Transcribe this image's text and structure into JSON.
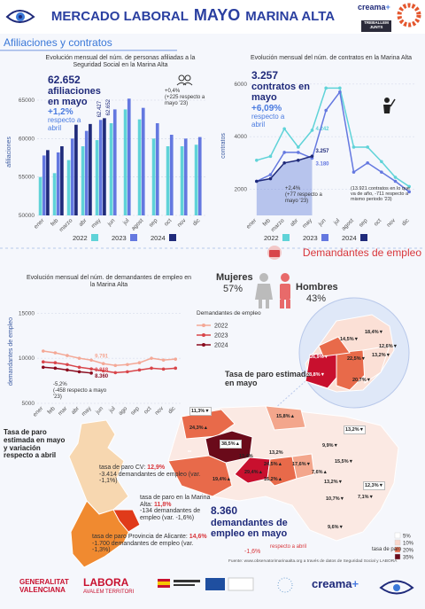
{
  "header": {
    "title_1": "MERCADO LABORAL",
    "title_month": "MAYO",
    "title_2": "MARINA ALTA",
    "brand": "creama",
    "brand_plus": "+",
    "badge": "TREBALLEM JUNTS"
  },
  "sections": [
    "Afiliaciones y contratos",
    "Demandantes de empleo"
  ],
  "chart_data": [
    {
      "type": "bar",
      "title": "Evolución mensual del núm. de personas afiliadas a la Seguridad Social en la Marina Alta",
      "y_label": "afiliaciones",
      "categories": [
        "ener",
        "feb",
        "marzo",
        "abr",
        "may",
        "jun",
        "jul",
        "agost",
        "sep",
        "oct",
        "nov",
        "dic"
      ],
      "series": [
        {
          "name": "2022",
          "color": "#5fd3d8",
          "values": [
            55000,
            55500,
            57200,
            59000,
            59800,
            62000,
            63800,
            62500,
            60000,
            59000,
            59000,
            59200
          ]
        },
        {
          "name": "2023",
          "color": "#6478e0",
          "values": [
            57800,
            58200,
            60000,
            61000,
            62427,
            63800,
            65200,
            64000,
            62000,
            60500,
            60000,
            60200
          ],
          "value_labels": [
            null,
            null,
            null,
            null,
            "62.427",
            null,
            null,
            null,
            null,
            null,
            null,
            null
          ]
        },
        {
          "name": "2024",
          "color": "#1f2a7a",
          "values": [
            58500,
            59000,
            61800,
            61900,
            62652,
            null,
            null,
            null,
            null,
            null,
            null,
            null
          ],
          "value_labels": [
            null,
            null,
            null,
            null,
            "62.652",
            null,
            null,
            null,
            null,
            null,
            null,
            null
          ]
        }
      ],
      "ylim": [
        50000,
        66500
      ],
      "yticks": [
        50000,
        55000,
        60000,
        65000
      ],
      "grid": true,
      "annotations": [
        "62.652",
        "afiliaciones en mayo",
        "+1,2%",
        "respecto a abril",
        "+0,4%",
        "(+225 respecto a mayo '23)"
      ]
    },
    {
      "type": "line",
      "title": "Evolución mensual del núm. de contratos en la Marina Alta",
      "y_label": "contratos",
      "categories": [
        "ener",
        "feb",
        "marzo",
        "abr",
        "may",
        "jun",
        "jul",
        "agost",
        "sep",
        "oct",
        "nov",
        "dic"
      ],
      "series": [
        {
          "name": "2022",
          "color": "#5fd3d8",
          "values": [
            3100,
            3250,
            4300,
            3600,
            4242,
            5850,
            5850,
            3600,
            3600,
            3050,
            2450,
            2100
          ],
          "value_labels": [
            null,
            null,
            null,
            null,
            "4.242",
            null,
            null,
            null,
            null,
            null,
            null,
            null
          ]
        },
        {
          "name": "2023",
          "color": "#6478e0",
          "values": [
            2300,
            2550,
            3400,
            3400,
            3180,
            5000,
            5700,
            2650,
            3000,
            2650,
            2300,
            1900
          ],
          "value_labels": [
            null,
            null,
            null,
            null,
            "3.180",
            null,
            null,
            null,
            null,
            null,
            null,
            null
          ]
        },
        {
          "name": "2024",
          "color": "#1f2a7a",
          "values": [
            2300,
            2400,
            3000,
            3100,
            3257,
            null,
            null,
            null,
            null,
            null,
            null,
            null
          ],
          "value_labels": [
            null,
            null,
            null,
            null,
            "3.257",
            null,
            null,
            null,
            null,
            null,
            null,
            null
          ]
        }
      ],
      "ylim": [
        1000,
        6300
      ],
      "yticks": [
        2000,
        4000,
        6000
      ],
      "grid": true,
      "annotations": [
        "3.257",
        "contratos en mayo",
        "+6,09%",
        "respecto a abril",
        "+2,4%",
        "(+77 respecto a mayo '23)",
        "(13.921 contratos en lo que va de año, -711 respecto a mismo periodo '23)"
      ]
    },
    {
      "type": "line",
      "title": "Evolución mensual del núm. de demandantes de empleo en la Marina Alta",
      "y_label": "demandantes de empleo",
      "legend_title": "Demandantes de empleo",
      "categories": [
        "ener",
        "feb",
        "mar",
        "abr",
        "may",
        "jun",
        "jul",
        "ago",
        "sep",
        "oct",
        "nov",
        "dic"
      ],
      "series": [
        {
          "name": "2022",
          "color": "#f4a896",
          "values": [
            10800,
            10600,
            10300,
            10000,
            9791,
            9400,
            9200,
            9300,
            9500,
            10000,
            9800,
            9900
          ],
          "value_labels": [
            null,
            null,
            null,
            null,
            "9.791",
            null,
            null,
            null,
            null,
            null,
            null,
            null
          ]
        },
        {
          "name": "2023",
          "color": "#d8454a",
          "values": [
            9600,
            9500,
            9300,
            9000,
            8818,
            8600,
            8400,
            8500,
            8700,
            8900,
            8800,
            8900
          ],
          "value_labels": [
            null,
            null,
            null,
            null,
            "8.818",
            null,
            null,
            null,
            null,
            null,
            null,
            null
          ]
        },
        {
          "name": "2024",
          "color": "#8a0b1e",
          "values": [
            9000,
            8900,
            8700,
            8500,
            8360,
            null,
            null,
            null,
            null,
            null,
            null,
            null
          ],
          "value_labels": [
            null,
            null,
            null,
            null,
            "8.360",
            null,
            null,
            null,
            null,
            null,
            null,
            null
          ]
        }
      ],
      "ylim": [
        5000,
        16500
      ],
      "yticks": [
        5000,
        10000,
        15000
      ],
      "grid": true,
      "annotations": [
        "-5,2%",
        "(-458 respecto a mayo '23)"
      ]
    }
  ],
  "gender": {
    "women_label": "Mujeres",
    "women_value": "57%",
    "men_label": "Hombres",
    "men_value": "43%"
  },
  "map": {
    "title": "Tasa de paro estimada en mayo",
    "labels": [
      "11,3%▼",
      "15,8%▲",
      "24,3%▲",
      "38,5%▲",
      "**",
      "13,4%",
      "13,2%",
      "24,5%▲",
      "17,6%▼",
      "29,4%▲",
      "16,2%▲",
      "19,4%▲",
      "13,2%▼",
      "9,9%▼",
      "15,5%▼",
      "7,6%▲",
      "13,2%▼",
      "12,3%▼",
      "10,7%▼",
      "7,1%▼",
      "9,6%▼"
    ],
    "inset_labels": [
      "14,5%▼",
      "18,4%▼",
      "26,9%▼",
      "22,5%▼",
      "12,6%▼",
      "13,2%▼",
      "28,8%▼",
      "20,7%▼"
    ],
    "legend_title": "tasa de paro",
    "legend": [
      "5%",
      "10%",
      "20%",
      "35%"
    ]
  },
  "region": {
    "title": "Tasa de paro estimada en mayo y variación respecto a abril",
    "items": [
      {
        "label": "tasa de paro CV:",
        "value": "12,9%",
        "detail": "-3.414 demandantes de empleo (var. -1,1%)"
      },
      {
        "label": "tasa de paro en la Marina Alta:",
        "value": "11,8%",
        "detail": "-134 demandantes de empleo (var. -1,6%)"
      },
      {
        "label": "tasa de paro Provincia de Alicante:",
        "value": "14,6%",
        "detail": "-1.700 demandantes de empleo (var. -1,3%)"
      }
    ]
  },
  "totals": {
    "value": "8.360",
    "text": "demandantes de empleo en mayo",
    "change": "-1,6%",
    "change_text": "respecto a abril"
  },
  "source": "Fuente: www.observatorimarinaalta.org a través de datos de Seguridad Social y LABORA",
  "footer": {
    "gv_1": "GENERALITAT",
    "gv_2": "VALENCIANA",
    "labora": "LABORA",
    "labora_sub": "AVALEM TERRITORI",
    "brand": "creama",
    "brand_plus": "+"
  }
}
